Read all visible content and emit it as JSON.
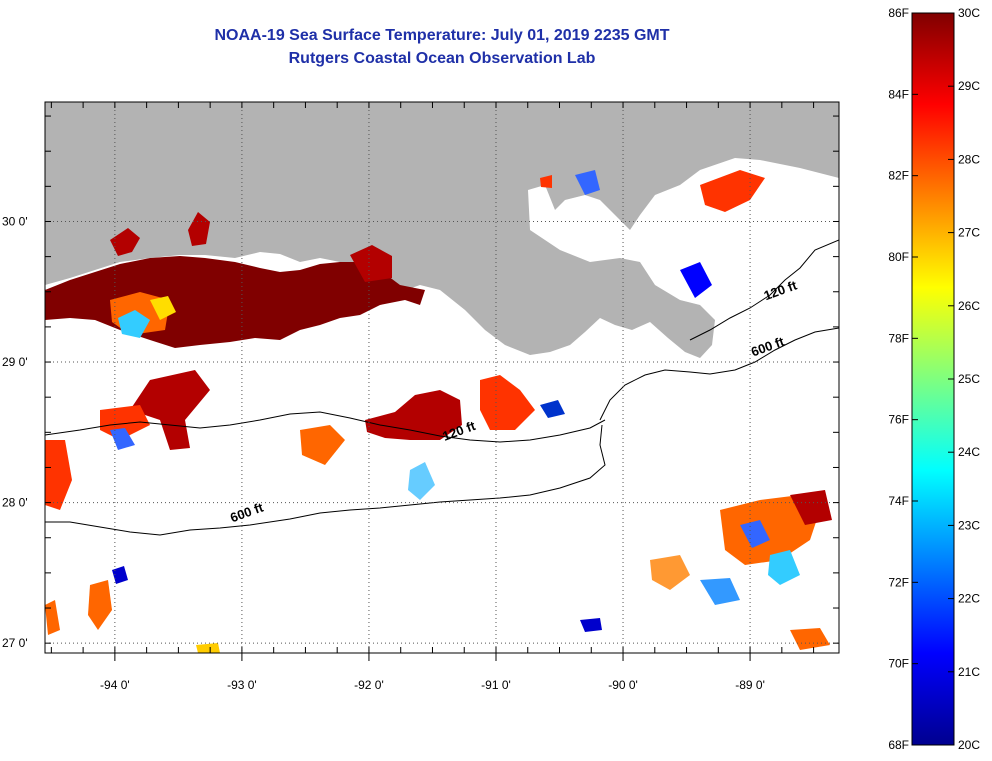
{
  "title": {
    "line1": "NOAA-19 Sea Surface Temperature:  July 01, 2019 2235 GMT",
    "line2": "Rutgers Coastal Ocean Observation Lab"
  },
  "map": {
    "lon_ticks": [
      {
        "value": -94,
        "label": "-94 0'"
      },
      {
        "value": -93,
        "label": "-93 0'"
      },
      {
        "value": -92,
        "label": "-92 0'"
      },
      {
        "value": -91,
        "label": "-91 0'"
      },
      {
        "value": -90,
        "label": "-90 0'"
      },
      {
        "value": -89,
        "label": "-89 0'"
      }
    ],
    "lat_ticks": [
      {
        "value": 30,
        "label": "30 0'"
      },
      {
        "value": 29,
        "label": "29 0'"
      },
      {
        "value": 28,
        "label": "28 0'"
      },
      {
        "value": 27,
        "label": "27 0'"
      }
    ],
    "lon_range": [
      -94.55,
      -88.3
    ],
    "lat_range": [
      26.93,
      30.85
    ],
    "land_color": "#b3b3b3",
    "grid": "dotted",
    "contour_labels": [
      {
        "text": "120 ft",
        "lon": -88.75,
        "lat": 29.48
      },
      {
        "text": "600 ft",
        "lon": -88.85,
        "lat": 29.08
      },
      {
        "text": "120 ft",
        "lon": -91.28,
        "lat": 28.48
      },
      {
        "text": "600 ft",
        "lon": -92.95,
        "lat": 27.9
      }
    ]
  },
  "colorbar": {
    "f_labels": [
      "86F",
      "84F",
      "82F",
      "80F",
      "78F",
      "76F",
      "74F",
      "72F",
      "70F",
      "68F"
    ],
    "c_labels": [
      "30C",
      "29C",
      "28C",
      "27C",
      "26C",
      "25C",
      "24C",
      "23C",
      "22C",
      "21C",
      "20C"
    ],
    "range_c": [
      20,
      30
    ],
    "colormap": "jet"
  }
}
